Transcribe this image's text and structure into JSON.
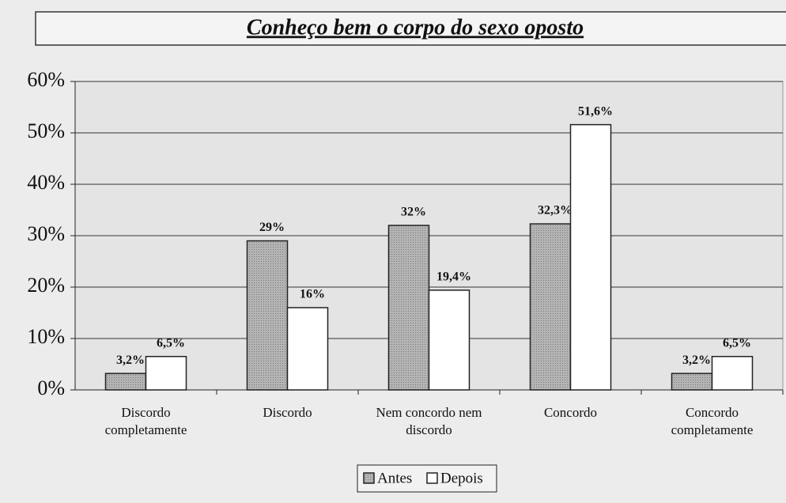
{
  "chart_data": {
    "type": "bar",
    "title": "Conheço bem o corpo do sexo oposto",
    "categories": [
      "Discordo completamente",
      "Discordo",
      "Nem concordo nem discordo",
      "Concordo",
      "Concordo completamente"
    ],
    "series": [
      {
        "name": "Antes",
        "color": "#a3a3a3",
        "values": [
          3.2,
          29,
          32,
          32.3,
          3.2
        ],
        "value_labels": [
          "3,2%",
          "29%",
          "32%",
          "32,3%",
          "3,2%"
        ]
      },
      {
        "name": "Depois",
        "color": "#ffffff",
        "values": [
          6.5,
          16,
          19.4,
          51.6,
          6.5
        ],
        "value_labels": [
          "6,5%",
          "16%",
          "19,4%",
          "51,6%",
          "6,5%"
        ]
      }
    ],
    "ylim": [
      0,
      60
    ],
    "yticks": [
      {
        "value": 0,
        "label": "0%"
      },
      {
        "value": 10,
        "label": "10%"
      },
      {
        "value": 20,
        "label": "20%"
      },
      {
        "value": 30,
        "label": "30%"
      },
      {
        "value": 40,
        "label": "40%"
      },
      {
        "value": 50,
        "label": "50%"
      },
      {
        "value": 60,
        "label": "60%"
      }
    ],
    "grid": true,
    "legend": "bottom"
  }
}
